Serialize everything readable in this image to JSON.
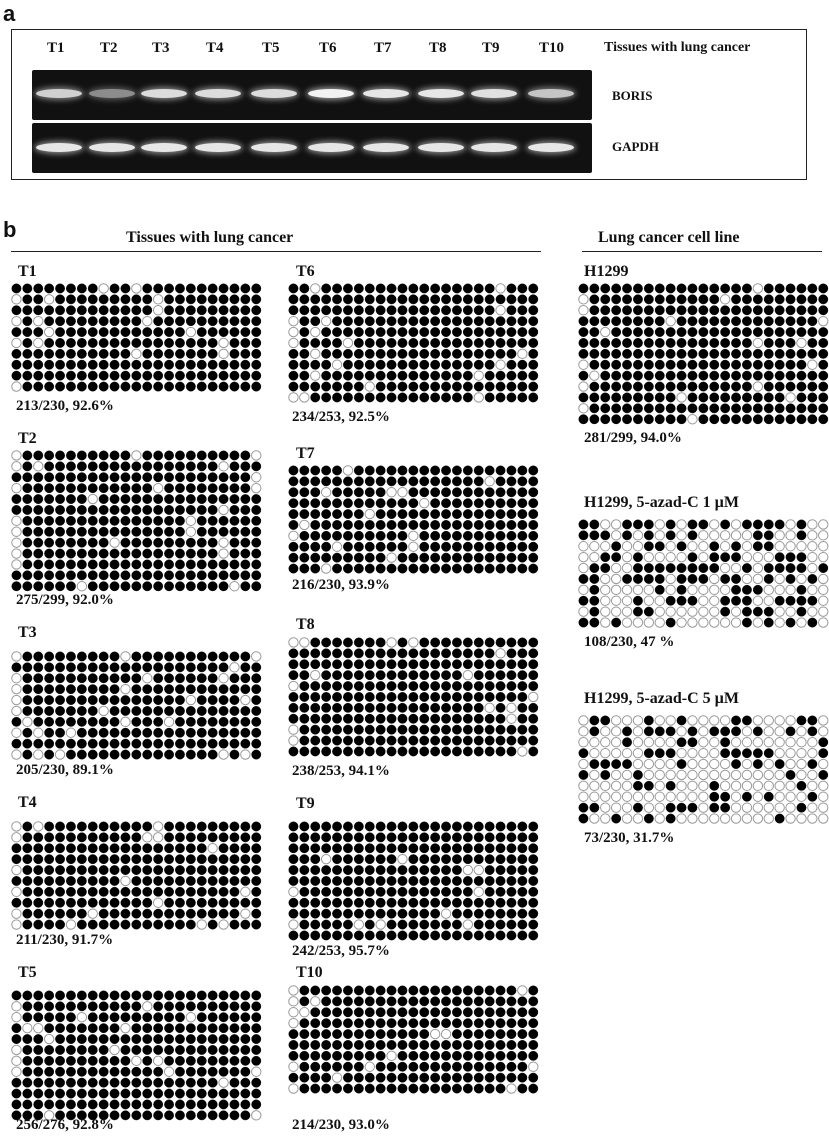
{
  "panels": {
    "a": "a",
    "b": "b"
  },
  "gel": {
    "lanes": [
      "T1",
      "T2",
      "T3",
      "T4",
      "T5",
      "T6",
      "T7",
      "T8",
      "T9",
      "T10"
    ],
    "heading": "Tissues with lung cancer",
    "genes": [
      {
        "name": "BORIS",
        "intensity": [
          0.85,
          0.55,
          0.9,
          0.9,
          0.9,
          1.0,
          0.95,
          0.95,
          0.92,
          0.8
        ]
      },
      {
        "name": "GAPDH",
        "intensity": [
          0.95,
          0.95,
          0.95,
          0.95,
          0.95,
          0.95,
          0.95,
          0.95,
          0.95,
          0.95
        ]
      }
    ]
  },
  "sections": {
    "tissues": "Tissues with  lung cancer",
    "cell_line": "Lung cancer  cell line"
  },
  "colors": {
    "methylated": "#000000",
    "unmethylated": "#ffffff",
    "outline": "#9a9a9a"
  },
  "samples": [
    {
      "label": "T1",
      "stat": "213/230, 92.6%",
      "cols": 23,
      "rows": 10,
      "methylated": 213
    },
    {
      "label": "T2",
      "stat": "275/299, 92.0%",
      "cols": 23,
      "rows": 13,
      "methylated": 275
    },
    {
      "label": "T3",
      "stat": "205/230, 89.1%",
      "cols": 23,
      "rows": 10,
      "methylated": 205
    },
    {
      "label": "T4",
      "stat": "211/230, 91.7%",
      "cols": 23,
      "rows": 10,
      "methylated": 211
    },
    {
      "label": "T5",
      "stat": "256/276, 92.8%",
      "cols": 23,
      "rows": 12,
      "methylated": 256
    },
    {
      "label": "T6",
      "stat": "234/253, 92.5%",
      "cols": 23,
      "rows": 11,
      "methylated": 234
    },
    {
      "label": "T7",
      "stat": "216/230, 93.9%",
      "cols": 23,
      "rows": 10,
      "methylated": 216
    },
    {
      "label": "T8",
      "stat": "238/253, 94.1%",
      "cols": 23,
      "rows": 11,
      "methylated": 238
    },
    {
      "label": "T9",
      "stat": "242/253, 95.7%",
      "cols": 23,
      "rows": 11,
      "methylated": 242
    },
    {
      "label": "T10",
      "stat": "214/230, 93.0%",
      "cols": 23,
      "rows": 10,
      "methylated": 214
    },
    {
      "label": "H1299",
      "stat": "281/299, 94.0%",
      "cols": 23,
      "rows": 13,
      "methylated": 281
    },
    {
      "label": "H1299, 5-azad-C  1 µM",
      "stat": "108/230, 47 %",
      "cols": 23,
      "rows": 10,
      "methylated": 108
    },
    {
      "label": "H1299, 5-azad-C  5 µM",
      "stat": "73/230, 31.7%",
      "cols": 23,
      "rows": 10,
      "methylated": 73
    }
  ]
}
